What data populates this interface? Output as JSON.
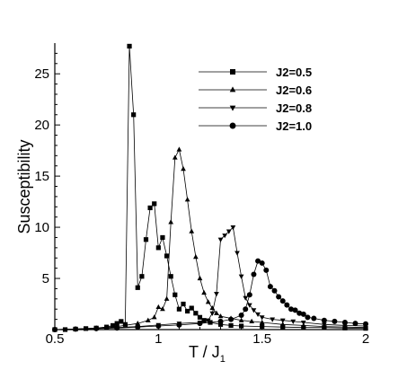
{
  "chart_data": {
    "type": "line",
    "xlabel": "T /  J",
    "xlabel_sub": "1",
    "ylabel": "Susceptibility",
    "xlim": [
      0.5,
      2.0
    ],
    "ylim": [
      0,
      28
    ],
    "x_ticks": [
      0.5,
      1.0,
      1.5,
      2.0
    ],
    "x_tick_labels": [
      "0.5",
      "1",
      "1.5",
      "2"
    ],
    "y_ticks": [
      5,
      10,
      15,
      20,
      25
    ],
    "y_tick_labels": [
      "5",
      "10",
      "15",
      "20",
      "25"
    ],
    "grid": false,
    "legend_position": "top-right",
    "series": [
      {
        "name": "J2=0.5",
        "marker": "square",
        "points": [
          [
            0.5,
            0.0
          ],
          [
            0.55,
            0.0
          ],
          [
            0.6,
            0.05
          ],
          [
            0.65,
            0.1
          ],
          [
            0.7,
            0.15
          ],
          [
            0.75,
            0.25
          ],
          [
            0.78,
            0.4
          ],
          [
            0.8,
            0.6
          ],
          [
            0.82,
            0.8
          ],
          [
            0.84,
            0.5
          ],
          [
            0.86,
            27.7
          ],
          [
            0.88,
            21.0
          ],
          [
            0.9,
            4.1
          ],
          [
            0.92,
            5.2
          ],
          [
            0.94,
            8.8
          ],
          [
            0.96,
            11.9
          ],
          [
            0.98,
            12.3
          ],
          [
            1.0,
            8.0
          ],
          [
            1.02,
            9.0
          ],
          [
            1.04,
            7.2
          ],
          [
            1.06,
            5.2
          ],
          [
            1.08,
            3.4
          ],
          [
            1.1,
            2.0
          ],
          [
            1.12,
            2.5
          ],
          [
            1.14,
            1.8
          ],
          [
            1.16,
            2.1
          ],
          [
            1.18,
            1.6
          ],
          [
            1.2,
            1.2
          ],
          [
            1.22,
            0.9
          ],
          [
            1.25,
            0.7
          ],
          [
            1.3,
            0.5
          ],
          [
            1.35,
            0.4
          ],
          [
            1.4,
            0.35
          ],
          [
            1.5,
            0.3
          ],
          [
            1.6,
            0.25
          ],
          [
            1.7,
            0.2
          ],
          [
            1.8,
            0.2
          ],
          [
            1.9,
            0.15
          ],
          [
            2.0,
            0.12
          ]
        ]
      },
      {
        "name": "J2=0.6",
        "marker": "triangle-up",
        "points": [
          [
            0.5,
            0.0
          ],
          [
            0.6,
            0.05
          ],
          [
            0.7,
            0.15
          ],
          [
            0.8,
            0.3
          ],
          [
            0.9,
            0.6
          ],
          [
            0.95,
            0.9
          ],
          [
            0.98,
            1.2
          ],
          [
            1.0,
            2.2
          ],
          [
            1.02,
            2.0
          ],
          [
            1.04,
            3.0
          ],
          [
            1.06,
            10.5
          ],
          [
            1.08,
            16.8
          ],
          [
            1.1,
            17.6
          ],
          [
            1.12,
            15.7
          ],
          [
            1.14,
            12.7
          ],
          [
            1.16,
            9.6
          ],
          [
            1.18,
            7.1
          ],
          [
            1.2,
            5.0
          ],
          [
            1.22,
            3.6
          ],
          [
            1.24,
            2.7
          ],
          [
            1.26,
            2.1
          ],
          [
            1.28,
            1.6
          ],
          [
            1.3,
            1.3
          ],
          [
            1.35,
            1.1
          ],
          [
            1.4,
            0.9
          ],
          [
            1.45,
            0.8
          ],
          [
            1.5,
            0.7
          ],
          [
            1.6,
            0.5
          ],
          [
            1.7,
            0.4
          ],
          [
            1.8,
            0.3
          ],
          [
            1.9,
            0.25
          ],
          [
            2.0,
            0.2
          ]
        ]
      },
      {
        "name": "J2=0.8",
        "marker": "triangle-down",
        "points": [
          [
            0.5,
            0.0
          ],
          [
            0.6,
            0.05
          ],
          [
            0.7,
            0.1
          ],
          [
            0.8,
            0.2
          ],
          [
            0.9,
            0.3
          ],
          [
            1.0,
            0.45
          ],
          [
            1.1,
            0.6
          ],
          [
            1.2,
            0.7
          ],
          [
            1.24,
            0.9
          ],
          [
            1.26,
            1.6
          ],
          [
            1.28,
            3.5
          ],
          [
            1.3,
            8.8
          ],
          [
            1.32,
            9.2
          ],
          [
            1.34,
            9.6
          ],
          [
            1.36,
            10.0
          ],
          [
            1.38,
            7.5
          ],
          [
            1.4,
            5.2
          ],
          [
            1.42,
            3.1
          ],
          [
            1.44,
            2.4
          ],
          [
            1.46,
            1.9
          ],
          [
            1.48,
            1.5
          ],
          [
            1.5,
            1.2
          ],
          [
            1.55,
            1.0
          ],
          [
            1.6,
            0.9
          ],
          [
            1.65,
            0.8
          ],
          [
            1.7,
            0.7
          ],
          [
            1.8,
            0.5
          ],
          [
            1.9,
            0.4
          ],
          [
            2.0,
            0.35
          ]
        ]
      },
      {
        "name": "J2=1.0",
        "marker": "circle",
        "points": [
          [
            0.5,
            0.0
          ],
          [
            0.6,
            0.05
          ],
          [
            0.7,
            0.1
          ],
          [
            0.8,
            0.15
          ],
          [
            0.9,
            0.25
          ],
          [
            1.0,
            0.35
          ],
          [
            1.1,
            0.45
          ],
          [
            1.2,
            0.6
          ],
          [
            1.3,
            0.8
          ],
          [
            1.35,
            1.0
          ],
          [
            1.4,
            1.4
          ],
          [
            1.42,
            2.0
          ],
          [
            1.44,
            3.4
          ],
          [
            1.46,
            5.4
          ],
          [
            1.48,
            6.7
          ],
          [
            1.5,
            6.5
          ],
          [
            1.52,
            5.8
          ],
          [
            1.54,
            4.2
          ],
          [
            1.56,
            3.8
          ],
          [
            1.58,
            3.2
          ],
          [
            1.6,
            2.8
          ],
          [
            1.62,
            2.4
          ],
          [
            1.64,
            2.0
          ],
          [
            1.66,
            1.9
          ],
          [
            1.68,
            1.6
          ],
          [
            1.7,
            1.5
          ],
          [
            1.72,
            1.2
          ],
          [
            1.75,
            1.1
          ],
          [
            1.8,
            0.9
          ],
          [
            1.85,
            0.8
          ],
          [
            1.9,
            0.7
          ],
          [
            1.95,
            0.6
          ],
          [
            2.0,
            0.55
          ]
        ]
      }
    ]
  }
}
